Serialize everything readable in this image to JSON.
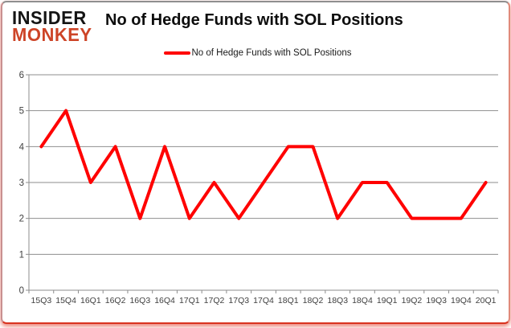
{
  "logo": {
    "line1": "INSIDER",
    "line2": "MONKEY"
  },
  "header": {
    "title": "No of Hedge Funds with SOL Positions"
  },
  "legend": {
    "label": "No of Hedge Funds with SOL Positions",
    "marker_color": "#ff0000"
  },
  "colors": {
    "line": "#ff0000",
    "grid": "#8e8e8e",
    "axis": "#8e8e8e",
    "tick_label": "#3f3f3f",
    "logo_red": "#cd4427",
    "border_glow": "#d93420"
  },
  "chart_data": {
    "type": "line",
    "title": "No of Hedge Funds with SOL Positions",
    "categories": [
      "15Q3",
      "15Q4",
      "16Q1",
      "16Q2",
      "16Q3",
      "16Q4",
      "17Q1",
      "17Q2",
      "17Q3",
      "17Q4",
      "18Q1",
      "18Q2",
      "18Q3",
      "18Q4",
      "19Q1",
      "19Q2",
      "19Q3",
      "19Q4",
      "20Q1"
    ],
    "series": [
      {
        "name": "No of Hedge Funds with SOL Positions",
        "color": "#ff0000",
        "values": [
          4,
          5,
          3,
          4,
          2,
          4,
          2,
          3,
          2,
          3,
          4,
          4,
          2,
          3,
          3,
          2,
          2,
          2,
          3
        ]
      }
    ],
    "xlabel": "",
    "ylabel": "",
    "ylim": [
      0,
      6
    ],
    "ytick_step": 1,
    "grid": true,
    "legend_position": "top"
  }
}
